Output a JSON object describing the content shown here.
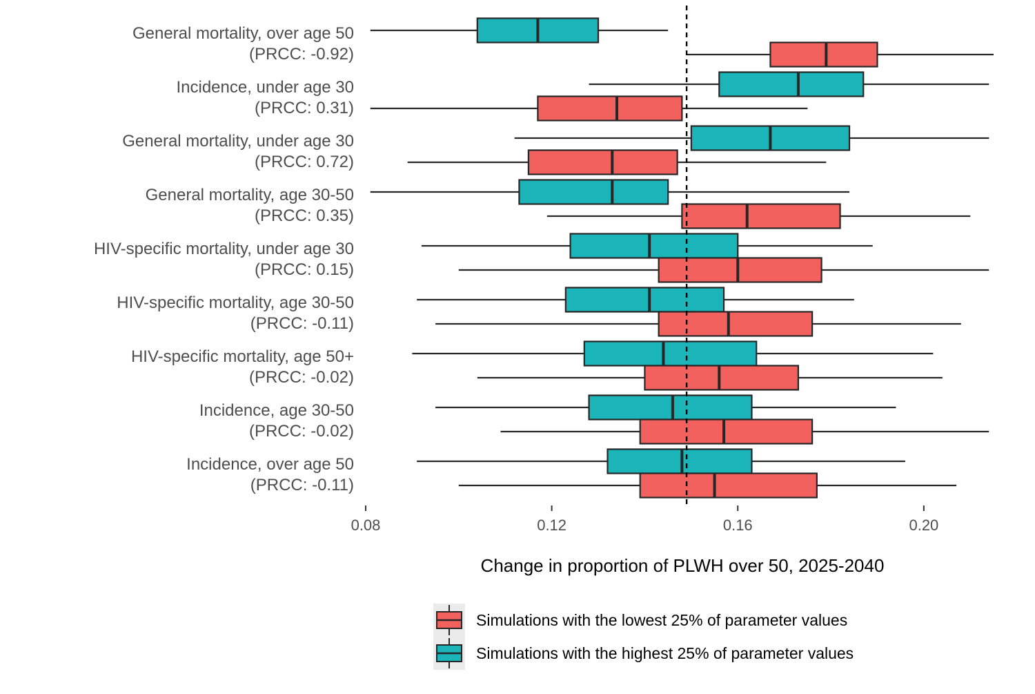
{
  "chart_data": {
    "type": "boxplot",
    "orientation": "horizontal",
    "xlabel": "Change in proportion of PLWH over 50, 2025-2040",
    "xlim": [
      0.08,
      0.215
    ],
    "xticks": [
      "0.08",
      "0.12",
      "0.16",
      "0.20"
    ],
    "reference_line": 0.149,
    "grid": false,
    "legend_position": "bottom",
    "colors": {
      "low": "#F2615E",
      "high": "#1BB4B8",
      "stroke": "#262626"
    },
    "series": [
      {
        "key": "low",
        "name": "Simulations with the lowest 25% of parameter values"
      },
      {
        "key": "high",
        "name": "Simulations with the highest 25% of parameter values"
      }
    ],
    "categories": [
      {
        "label": "General mortality, over age 50",
        "prcc": "(PRCC: -0.92)",
        "high": {
          "min": 0.081,
          "q1": 0.104,
          "median": 0.117,
          "q3": 0.13,
          "max": 0.145
        },
        "low": {
          "min": 0.149,
          "q1": 0.167,
          "median": 0.179,
          "q3": 0.19,
          "max": 0.215
        }
      },
      {
        "label": "Incidence, under age 30",
        "prcc": "(PRCC: 0.31)",
        "high": {
          "min": 0.128,
          "q1": 0.156,
          "median": 0.173,
          "q3": 0.187,
          "max": 0.214
        },
        "low": {
          "min": 0.081,
          "q1": 0.117,
          "median": 0.134,
          "q3": 0.148,
          "max": 0.175
        }
      },
      {
        "label": "General mortality, under age 30",
        "prcc": "(PRCC: 0.72)",
        "high": {
          "min": 0.112,
          "q1": 0.15,
          "median": 0.167,
          "q3": 0.184,
          "max": 0.214
        },
        "low": {
          "min": 0.089,
          "q1": 0.115,
          "median": 0.133,
          "q3": 0.147,
          "max": 0.179
        }
      },
      {
        "label": "General mortality, age 30-50",
        "prcc": "(PRCC: 0.35)",
        "high": {
          "min": 0.081,
          "q1": 0.113,
          "median": 0.133,
          "q3": 0.145,
          "max": 0.184
        },
        "low": {
          "min": 0.119,
          "q1": 0.148,
          "median": 0.162,
          "q3": 0.182,
          "max": 0.21
        }
      },
      {
        "label": "HIV-specific mortality, under age 30",
        "prcc": "(PRCC: 0.15)",
        "high": {
          "min": 0.092,
          "q1": 0.124,
          "median": 0.141,
          "q3": 0.16,
          "max": 0.189
        },
        "low": {
          "min": 0.1,
          "q1": 0.143,
          "median": 0.16,
          "q3": 0.178,
          "max": 0.214
        }
      },
      {
        "label": "HIV-specific mortality, age 30-50",
        "prcc": "(PRCC: -0.11)",
        "high": {
          "min": 0.091,
          "q1": 0.123,
          "median": 0.141,
          "q3": 0.157,
          "max": 0.185
        },
        "low": {
          "min": 0.095,
          "q1": 0.143,
          "median": 0.158,
          "q3": 0.176,
          "max": 0.208
        }
      },
      {
        "label": "HIV-specific mortality, age 50+",
        "prcc": "(PRCC: -0.02)",
        "high": {
          "min": 0.09,
          "q1": 0.127,
          "median": 0.144,
          "q3": 0.164,
          "max": 0.202
        },
        "low": {
          "min": 0.104,
          "q1": 0.14,
          "median": 0.156,
          "q3": 0.173,
          "max": 0.204
        }
      },
      {
        "label": "Incidence, age 30-50",
        "prcc": "(PRCC: -0.02)",
        "high": {
          "min": 0.095,
          "q1": 0.128,
          "median": 0.146,
          "q3": 0.163,
          "max": 0.194
        },
        "low": {
          "min": 0.109,
          "q1": 0.139,
          "median": 0.157,
          "q3": 0.176,
          "max": 0.214
        }
      },
      {
        "label": "Incidence, over age 50",
        "prcc": "(PRCC: -0.11)",
        "high": {
          "min": 0.091,
          "q1": 0.132,
          "median": 0.148,
          "q3": 0.163,
          "max": 0.196
        },
        "low": {
          "min": 0.1,
          "q1": 0.139,
          "median": 0.155,
          "q3": 0.177,
          "max": 0.207
        }
      }
    ]
  }
}
